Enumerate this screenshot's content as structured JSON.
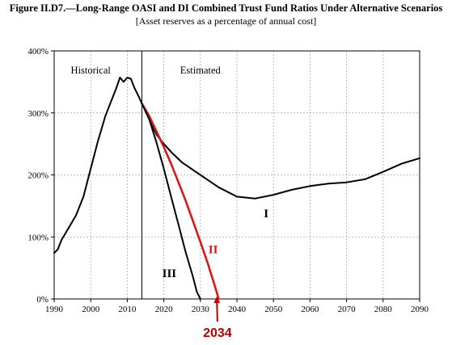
{
  "chart_data": {
    "type": "line",
    "title": "Figure II.D7.—Long-Range OASI and DI Combined Trust Fund Ratios Under Alternative Scenarios",
    "subtitle": "[Asset reserves as a percentage of annual cost]",
    "xlim": [
      1990,
      2090
    ],
    "ylim": [
      0,
      400
    ],
    "x_ticks": [
      1990,
      2000,
      2010,
      2020,
      2030,
      2040,
      2050,
      2060,
      2070,
      2080,
      2090
    ],
    "x_tick_labels": [
      "1990",
      "2000",
      "2010",
      "2020",
      "2030",
      "2040",
      "2050",
      "2060",
      "2070",
      "2080",
      "2090"
    ],
    "y_ticks": [
      0,
      100,
      200,
      300,
      400
    ],
    "y_tick_labels": [
      "0%",
      "100%",
      "200%",
      "300%",
      "400%"
    ],
    "grid": true,
    "divider_year": 2014,
    "region_labels": [
      {
        "text": "Historical",
        "x": 2000,
        "y": 370
      },
      {
        "text": "Estimated",
        "x": 2030,
        "y": 370
      }
    ],
    "series": [
      {
        "name": "Historical",
        "color": "#000000",
        "points": [
          [
            1990,
            74
          ],
          [
            1991,
            80
          ],
          [
            1992,
            95
          ],
          [
            1994,
            115
          ],
          [
            1996,
            135
          ],
          [
            1998,
            165
          ],
          [
            2000,
            210
          ],
          [
            2002,
            255
          ],
          [
            2004,
            295
          ],
          [
            2006,
            325
          ],
          [
            2007,
            340
          ],
          [
            2008,
            357
          ],
          [
            2009,
            350
          ],
          [
            2010,
            357
          ],
          [
            2011,
            355
          ],
          [
            2012,
            340
          ],
          [
            2013,
            328
          ],
          [
            2014,
            315
          ]
        ]
      },
      {
        "name": "I",
        "label": "I",
        "label_x": 2048,
        "label_y": 138,
        "color": "#000000",
        "points": [
          [
            2014,
            315
          ],
          [
            2016,
            290
          ],
          [
            2018,
            265
          ],
          [
            2020,
            250
          ],
          [
            2022,
            237
          ],
          [
            2025,
            220
          ],
          [
            2030,
            200
          ],
          [
            2035,
            180
          ],
          [
            2040,
            165
          ],
          [
            2045,
            162
          ],
          [
            2050,
            168
          ],
          [
            2055,
            176
          ],
          [
            2060,
            182
          ],
          [
            2065,
            186
          ],
          [
            2070,
            188
          ],
          [
            2075,
            193
          ],
          [
            2080,
            205
          ],
          [
            2085,
            218
          ],
          [
            2090,
            227
          ]
        ]
      },
      {
        "name": "II",
        "label": "II",
        "label_x": 2033.5,
        "label_y": 80,
        "color": "#d81818",
        "points": [
          [
            2014,
            315
          ],
          [
            2016,
            295
          ],
          [
            2018,
            270
          ],
          [
            2020,
            245
          ],
          [
            2022,
            218
          ],
          [
            2024,
            188
          ],
          [
            2026,
            158
          ],
          [
            2028,
            125
          ],
          [
            2030,
            92
          ],
          [
            2032,
            58
          ],
          [
            2034,
            20
          ],
          [
            2035,
            0
          ]
        ]
      },
      {
        "name": "III",
        "label": "III",
        "label_x": 2021.5,
        "label_y": 42,
        "color": "#000000",
        "points": [
          [
            2014,
            315
          ],
          [
            2016,
            290
          ],
          [
            2018,
            252
          ],
          [
            2020,
            210
          ],
          [
            2022,
            165
          ],
          [
            2024,
            120
          ],
          [
            2026,
            75
          ],
          [
            2028,
            35
          ],
          [
            2029,
            12
          ],
          [
            2030,
            0
          ]
        ]
      }
    ],
    "annotations": [
      {
        "text": "2034",
        "x": 2034,
        "color": "#c00000",
        "arrow_to_year": 2034.5
      }
    ]
  }
}
